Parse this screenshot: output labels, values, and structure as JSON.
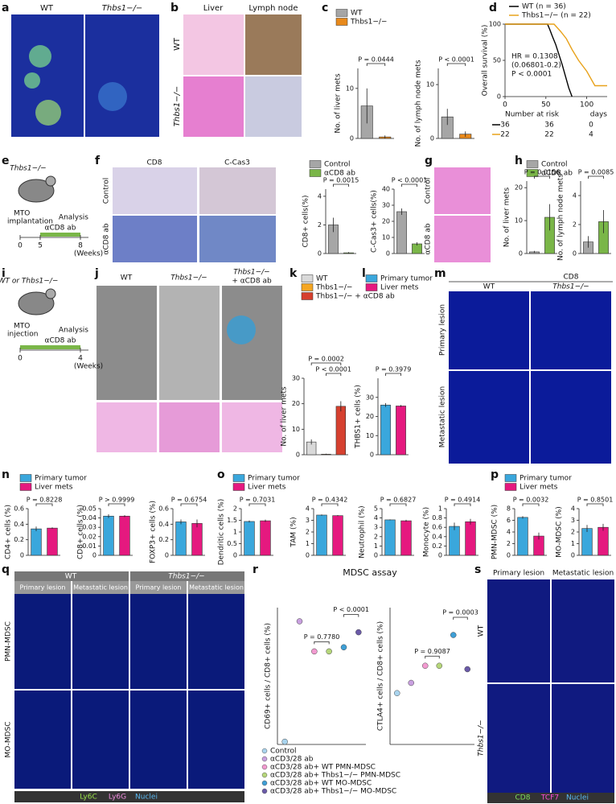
{
  "panels": {
    "a": {
      "letter": "a",
      "labels": [
        "WT",
        "Thbs1−/−"
      ]
    },
    "b": {
      "letter": "b",
      "columns": [
        "Liver",
        "Lymph node"
      ],
      "rows": [
        "WT",
        "Thbs1−/−"
      ]
    },
    "c": {
      "letter": "c",
      "legend": [
        {
          "name": "WT",
          "color": "#a6a6a6"
        },
        {
          "name": "Thbs1−/−",
          "color": "#e8891b"
        }
      ]
    },
    "d": {
      "letter": "d",
      "risk_title": "Number at risk",
      "risk_rows": [
        [
          "36",
          "36",
          "0"
        ],
        [
          "22",
          "22",
          "4"
        ]
      ]
    },
    "e": {
      "letter": "e",
      "mouse": "Thbs1−/−",
      "steps": [
        "MTO",
        "implantation",
        "Analysis"
      ],
      "treatment": "αCD8 ab",
      "ticks": [
        "0",
        "5",
        "8"
      ],
      "unit": "(Weeks)"
    },
    "f": {
      "letter": "f",
      "columns": [
        "CD8",
        "C-Cas3"
      ],
      "rows": [
        "Control",
        "αCD8 ab"
      ],
      "legend": [
        {
          "name": "Control",
          "color": "#a6a6a6"
        },
        {
          "name": "αCD8 ab",
          "color": "#7ab648"
        }
      ]
    },
    "g": {
      "letter": "g",
      "rows": [
        "Control",
        "αCD8 ab"
      ]
    },
    "h": {
      "letter": "h",
      "legend": [
        {
          "name": "Control",
          "color": "#a6a6a6"
        },
        {
          "name": "αCD8 ab",
          "color": "#7ab648"
        }
      ]
    },
    "i": {
      "letter": "i",
      "mouse": "WT or Thbs1−/−",
      "steps": [
        "MTO",
        "injection",
        "Analysis"
      ],
      "treatment": "αCD8 ab",
      "ticks": [
        "0",
        "4"
      ],
      "unit": "(Weeks)"
    },
    "j": {
      "letter": "j",
      "columns": [
        "WT",
        "Thbs1−/−"
      ],
      "third": [
        "Thbs1−/−",
        "+ αCD8 ab"
      ]
    },
    "k": {
      "letter": "k",
      "legend": [
        {
          "name": "WT",
          "color": "#d9d9d9"
        },
        {
          "name": "Thbs1−/−",
          "color": "#f5a623"
        },
        {
          "name": "Thbs1−/− + αCD8 ab",
          "color": "#d6402f"
        }
      ]
    },
    "l": {
      "letter": "l",
      "legend": [
        {
          "name": "Primary tumor",
          "color": "#3aa7dc"
        },
        {
          "name": "Liver mets",
          "color": "#e5197f"
        }
      ]
    },
    "m": {
      "letter": "m",
      "title": "CD8",
      "columns": [
        "WT",
        "Thbs1−/−"
      ],
      "rows": [
        "Primary lesion",
        "Metastatic lesion"
      ]
    },
    "n": {
      "letter": "n",
      "legend": [
        {
          "name": "Primary tumor",
          "color": "#3aa7dc"
        },
        {
          "name": "Liver mets",
          "color": "#e5197f"
        }
      ]
    },
    "o": {
      "letter": "o",
      "legend": [
        {
          "name": "Primary tumor",
          "color": "#3aa7dc"
        },
        {
          "name": "Liver mets",
          "color": "#e5197f"
        }
      ]
    },
    "p": {
      "letter": "p",
      "legend": [
        {
          "name": "Primary tumor",
          "color": "#3aa7dc"
        },
        {
          "name": "Liver mets",
          "color": "#e5197f"
        }
      ]
    },
    "q": {
      "letter": "q",
      "groups": [
        "WT",
        "Thbs1−/−"
      ],
      "columns": [
        "Primary lesion",
        "Metastatic lesion",
        "Primary lesion",
        "Metastatic lesion"
      ],
      "rows": [
        "PMN-MDSC",
        "MO-MDSC"
      ],
      "stains": [
        {
          "name": "Ly6C",
          "color": "#9be34a"
        },
        {
          "name": "Ly6G",
          "color": "#f08ee0"
        },
        {
          "name": "Nuclei",
          "color": "#5bb8f0"
        }
      ]
    },
    "r": {
      "letter": "r",
      "title": "MDSC assay",
      "legend": [
        {
          "name": "Control",
          "color": "#a9d4ee"
        },
        {
          "name": "αCD3/28 ab",
          "color": "#c9a0e0"
        },
        {
          "name": "αCD3/28 ab+ WT PMN-MDSC",
          "color": "#f29ad0"
        },
        {
          "name": "αCD3/28 ab+ Thbs1−/− PMN-MDSC",
          "color": "#b6d77a"
        },
        {
          "name": "αCD3/28 ab+ WT MO-MDSC",
          "color": "#3e9fd6"
        },
        {
          "name": "αCD3/28 ab+ Thbs1−/− MO-MDSC",
          "color": "#6a5aa8"
        }
      ]
    },
    "s": {
      "letter": "s",
      "columns": [
        "Primary lesion",
        "Metastatic lesion"
      ],
      "rows": [
        "WT",
        "Thbs1−/−"
      ],
      "stains": [
        {
          "name": "CD8",
          "color": "#7de05a"
        },
        {
          "name": "TCF7",
          "color": "#ff4fd8"
        },
        {
          "name": "Nuclei",
          "color": "#5bb8f0"
        }
      ]
    }
  },
  "chart_data": [
    {
      "type": "bar",
      "ylabel": "No. of liver mets",
      "p_labels": [
        "P = 0.0444"
      ],
      "values": [
        6.5,
        0.3
      ],
      "errors": [
        3.5,
        0.3
      ],
      "colors": [
        "#a6a6a6",
        "#e8891b"
      ],
      "ylim": [
        0,
        14
      ],
      "yticks": [
        0,
        10
      ]
    },
    {
      "type": "bar",
      "ylabel": "No. of lymph node mets",
      "p_labels": [
        "P < 0.0001"
      ],
      "values": [
        4,
        0.8
      ],
      "errors": [
        1.5,
        0.5
      ],
      "colors": [
        "#a6a6a6",
        "#e8891b"
      ],
      "ylim": [
        0,
        13
      ],
      "yticks": [
        0,
        10
      ]
    },
    {
      "type": "line",
      "ylabel": "Overall survival (%)",
      "xlabel": "days",
      "annotation": [
        "HR = 0.1308",
        "(0.06801-0.2)",
        "P < 0.0001"
      ],
      "series": [
        {
          "name": "WT (n = 36)",
          "color": "#000000",
          "x": [
            0,
            52,
            55,
            58,
            62,
            66,
            70,
            74,
            78,
            82
          ],
          "y": [
            100,
            100,
            92,
            83,
            72,
            58,
            44,
            28,
            12,
            0
          ]
        },
        {
          "name": "Thbs1−/− (n = 22)",
          "color": "#e8a21b",
          "x": [
            0,
            60,
            68,
            75,
            82,
            90,
            100,
            110,
            125
          ],
          "y": [
            100,
            100,
            90,
            80,
            65,
            50,
            35,
            15,
            15
          ]
        }
      ],
      "xlim": [
        0,
        125
      ],
      "ylim": [
        0,
        100
      ],
      "xticks": [
        0,
        50,
        100
      ],
      "yticks": [
        0,
        50,
        100
      ]
    },
    {
      "type": "bar",
      "ylabel": "CD8+ cells(%)",
      "p_labels": [
        "P = 0.0015"
      ],
      "values": [
        2,
        0.05
      ],
      "errors": [
        0.5,
        0.05
      ],
      "colors": [
        "#a6a6a6",
        "#7ab648"
      ],
      "ylim": [
        0,
        4.5
      ],
      "yticks": [
        0,
        2,
        4
      ]
    },
    {
      "type": "bar",
      "ylabel": "C-Cas3+ cells(%)",
      "p_labels": [
        "P < 0.0001"
      ],
      "values": [
        26,
        6
      ],
      "errors": [
        2,
        1
      ],
      "colors": [
        "#a6a6a6",
        "#7ab648"
      ],
      "ylim": [
        0,
        40
      ],
      "yticks": [
        0,
        10,
        20,
        30,
        40
      ]
    },
    {
      "type": "bar",
      "ylabel": "No. of liver mets",
      "p_labels": [
        "P = 0.0156"
      ],
      "values": [
        0.5,
        11
      ],
      "errors": [
        0.3,
        4
      ],
      "colors": [
        "#a6a6a6",
        "#7ab648"
      ],
      "ylim": [
        0,
        22
      ],
      "yticks": [
        0,
        10,
        20
      ]
    },
    {
      "type": "bar",
      "ylabel": "No. of lymph node mets",
      "p_labels": [
        "P = 0.0085"
      ],
      "values": [
        0.8,
        2.2
      ],
      "errors": [
        0.4,
        0.8
      ],
      "colors": [
        "#a6a6a6",
        "#7ab648"
      ],
      "ylim": [
        0,
        5
      ],
      "yticks": [
        0,
        2,
        4
      ]
    },
    {
      "type": "bar",
      "ylabel": "No. of liver mets",
      "p_labels": [
        "P < 0.0001",
        "P = 0.0002"
      ],
      "values": [
        5,
        0.2,
        19
      ],
      "errors": [
        1,
        0.2,
        2
      ],
      "colors": [
        "#d9d9d9",
        "#f5a623",
        "#d6402f"
      ],
      "ylim": [
        0,
        30
      ],
      "yticks": [
        0,
        10,
        20,
        30
      ]
    },
    {
      "type": "bar",
      "ylabel": "THBS1+ cells (%)",
      "p_labels": [
        "P = 0.3979"
      ],
      "values": [
        26,
        25.5
      ],
      "errors": [
        1,
        0.5
      ],
      "colors": [
        "#3aa7dc",
        "#e5197f"
      ],
      "ylim": [
        0,
        40
      ],
      "yticks": [
        0,
        10,
        20,
        30
      ]
    },
    {
      "type": "bar",
      "ylabel": "CD4+ cells (%)",
      "p_labels": [
        "P = 0.8228"
      ],
      "values": [
        0.34,
        0.35
      ],
      "errors": [
        0.03,
        0.01
      ],
      "colors": [
        "#3aa7dc",
        "#e5197f"
      ],
      "ylim": [
        0,
        0.6
      ],
      "yticks": [
        0,
        0.2,
        0.4,
        0.6
      ]
    },
    {
      "type": "bar",
      "ylabel": "CD8+ cells (%)",
      "p_labels": [
        "P > 0.9999"
      ],
      "values": [
        0.042,
        0.042
      ],
      "errors": [
        0.002,
        0.001
      ],
      "colors": [
        "#3aa7dc",
        "#e5197f"
      ],
      "ylim": [
        0,
        0.05
      ],
      "yticks": [
        0,
        0.01,
        0.02,
        0.03,
        0.04,
        0.05
      ]
    },
    {
      "type": "bar",
      "ylabel": "FOXP3+ cells (%)",
      "p_labels": [
        "P = 0.6754"
      ],
      "values": [
        0.43,
        0.41
      ],
      "errors": [
        0.03,
        0.05
      ],
      "colors": [
        "#3aa7dc",
        "#e5197f"
      ],
      "ylim": [
        0,
        0.6
      ],
      "yticks": [
        0,
        0.2,
        0.4,
        0.6
      ]
    },
    {
      "type": "bar",
      "ylabel": "Dendritic cells (%)",
      "p_labels": [
        "P = 0.7031"
      ],
      "values": [
        1.45,
        1.48
      ],
      "errors": [
        0.04,
        0.05
      ],
      "colors": [
        "#3aa7dc",
        "#e5197f"
      ],
      "ylim": [
        0,
        2
      ],
      "yticks": [
        0,
        0.5,
        1,
        1.5,
        2
      ]
    },
    {
      "type": "bar",
      "ylabel": "TAM (%)",
      "p_labels": [
        "P = 0.4342"
      ],
      "values": [
        3.45,
        3.4
      ],
      "errors": [
        0.05,
        0.05
      ],
      "colors": [
        "#3aa7dc",
        "#e5197f"
      ],
      "ylim": [
        0,
        4
      ],
      "yticks": [
        0,
        1,
        2,
        3,
        4
      ]
    },
    {
      "type": "bar",
      "ylabel": "Neutrophil (%)",
      "p_labels": [
        "P = 0.6827"
      ],
      "values": [
        3.8,
        3.7
      ],
      "errors": [
        0.05,
        0.1
      ],
      "colors": [
        "#3aa7dc",
        "#e5197f"
      ],
      "ylim": [
        0,
        5
      ],
      "yticks": [
        0,
        1,
        2,
        3,
        4,
        5
      ]
    },
    {
      "type": "bar",
      "ylabel": "Monocyte (%)",
      "p_labels": [
        "P = 0.4914"
      ],
      "values": [
        0.62,
        0.72
      ],
      "errors": [
        0.08,
        0.06
      ],
      "colors": [
        "#3aa7dc",
        "#e5197f"
      ],
      "ylim": [
        0,
        1
      ],
      "yticks": [
        0,
        0.2,
        0.4,
        0.6,
        0.8,
        1
      ]
    },
    {
      "type": "bar",
      "ylabel": "PMN-MDSC (%)",
      "p_labels": [
        "P = 0.0032"
      ],
      "values": [
        6.5,
        3.3
      ],
      "errors": [
        0.2,
        0.6
      ],
      "colors": [
        "#3aa7dc",
        "#e5197f"
      ],
      "ylim": [
        0,
        8
      ],
      "yticks": [
        0,
        2,
        4,
        6,
        8
      ]
    },
    {
      "type": "bar",
      "ylabel": "MO-MDSC (%)",
      "p_labels": [
        "P = 0.8501"
      ],
      "values": [
        2.3,
        2.4
      ],
      "errors": [
        0.3,
        0.3
      ],
      "colors": [
        "#3aa7dc",
        "#e5197f"
      ],
      "ylim": [
        0,
        4
      ],
      "yticks": [
        0,
        1,
        2,
        3,
        4
      ]
    },
    {
      "type": "dot",
      "ylabel": "CD69+ cells / CD8+ cells (%)",
      "p_labels": [
        "P = 0.7780",
        "P < 0.0001"
      ],
      "values": [
        2,
        90,
        68,
        68,
        71,
        82
      ],
      "colors": [
        "#a9d4ee",
        "#c9a0e0",
        "#f29ad0",
        "#b6d77a",
        "#3e9fd6",
        "#6a5aa8"
      ],
      "ylim": [
        0,
        100
      ]
    },
    {
      "type": "dot",
      "ylabel": "CTLA4+ cells / CD8+ cells (%)",
      "p_labels": [
        "P = 0.9087",
        "P = 0.0003"
      ],
      "values": [
        7.5,
        9,
        11.5,
        11.5,
        16,
        11
      ],
      "colors": [
        "#a9d4ee",
        "#c9a0e0",
        "#f29ad0",
        "#b6d77a",
        "#3e9fd6",
        "#6a5aa8"
      ],
      "ylim": [
        0,
        20
      ]
    }
  ]
}
